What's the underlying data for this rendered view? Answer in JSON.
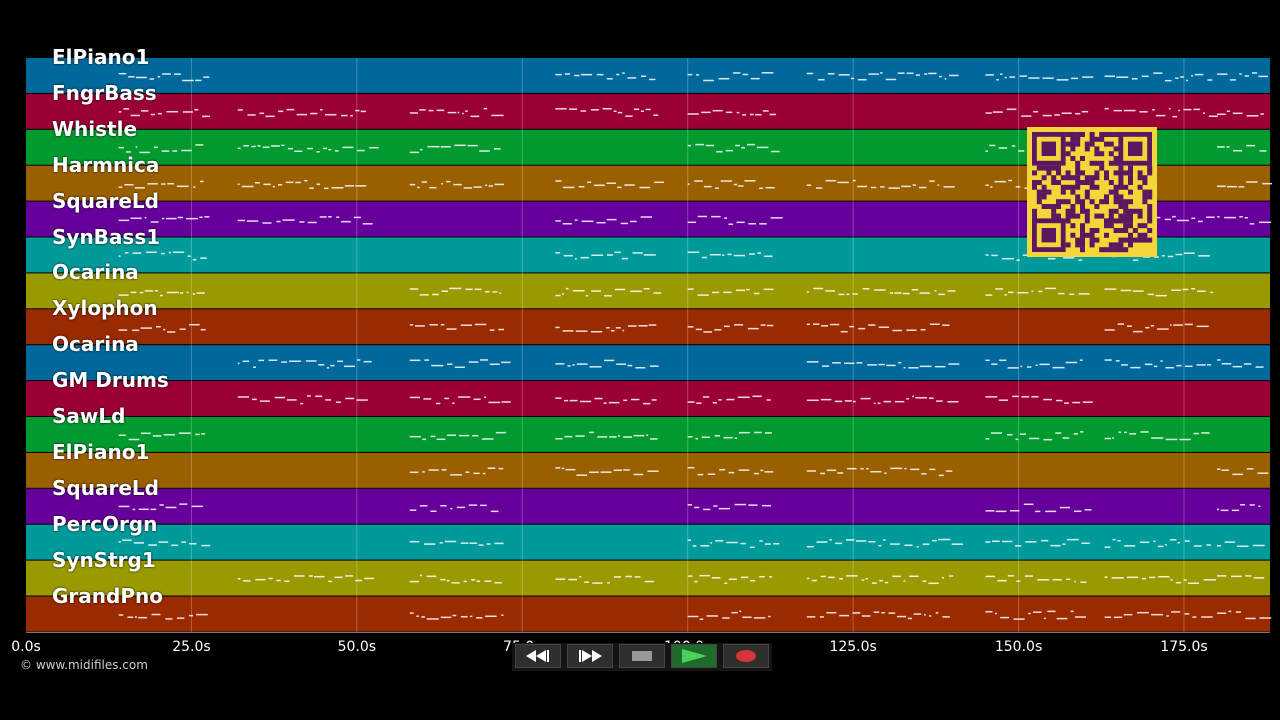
{
  "tracks": [
    {
      "name": "ElPiano1",
      "color": "#00689a"
    },
    {
      "name": "FngrBass",
      "color": "#9a0036"
    },
    {
      "name": "Whistle",
      "color": "#009a2e"
    },
    {
      "name": "Harmnica",
      "color": "#9a6000"
    },
    {
      "name": "SquareLd",
      "color": "#66009a"
    },
    {
      "name": "SynBass1",
      "color": "#009a9a"
    },
    {
      "name": "Ocarina",
      "color": "#9a9a00"
    },
    {
      "name": "Xylophon",
      "color": "#9a2a00"
    },
    {
      "name": "Ocarina",
      "color": "#00689a"
    },
    {
      "name": "GM Drums",
      "color": "#9a0036"
    },
    {
      "name": "SawLd",
      "color": "#009a2e"
    },
    {
      "name": "ElPiano1",
      "color": "#9a6000"
    },
    {
      "name": "SquareLd",
      "color": "#66009a"
    },
    {
      "name": "PercOrgn",
      "color": "#009a9a"
    },
    {
      "name": "SynStrg1",
      "color": "#9a9a00"
    },
    {
      "name": "GrandPno",
      "color": "#9a2a00"
    }
  ],
  "time_axis": {
    "ticks": [
      {
        "t": 0,
        "label": "0.0s"
      },
      {
        "t": 25,
        "label": "25.0s"
      },
      {
        "t": 50,
        "label": "50.0s"
      },
      {
        "t": 75,
        "label": "75.0s"
      },
      {
        "t": 100,
        "label": "100.0s"
      },
      {
        "t": 125,
        "label": "125.0s"
      },
      {
        "t": 150,
        "label": "150.0s"
      },
      {
        "t": 175,
        "label": "175.0s"
      }
    ],
    "max_seconds": 188
  },
  "copyright": "© www.midifiles.com",
  "transport": {
    "buttons": [
      {
        "name": "rewind-button",
        "icon": "rewind-icon"
      },
      {
        "name": "fast-forward-button",
        "icon": "fast-forward-icon"
      },
      {
        "name": "stop-button",
        "icon": "stop-icon"
      },
      {
        "name": "play-button",
        "icon": "play-icon"
      },
      {
        "name": "record-button",
        "icon": "record-icon"
      }
    ]
  },
  "colors": {
    "background": "#000000",
    "qr_background": "#f5d63a",
    "qr_foreground": "#5a1860",
    "grid": "#ffffff"
  }
}
